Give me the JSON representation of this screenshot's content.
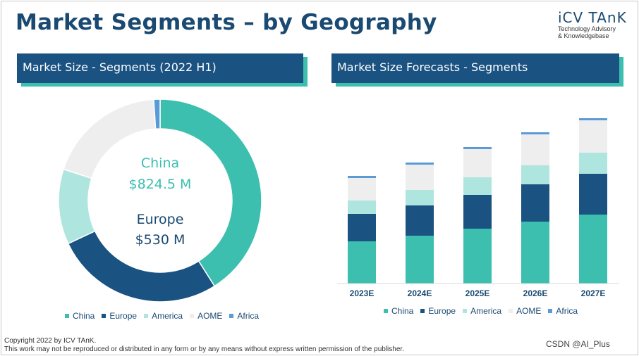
{
  "title": "Market Segments – by Geography",
  "logo": {
    "name": "iCV TAnK",
    "tagline_1": "Technology Advisory",
    "tagline_2": "& Knowledgebase"
  },
  "left_panel": {
    "heading": "Market Size - Segments (2022 H1)"
  },
  "right_panel": {
    "heading": "Market Size Forecasts - Segments"
  },
  "colors": {
    "China": "#3cbfae",
    "Europe": "#1a5282",
    "America": "#aee6df",
    "AOME": "#eeeeee",
    "Africa": "#5b9bd5"
  },
  "legend": [
    "China",
    "Europe",
    "America",
    "AOME",
    "Africa"
  ],
  "chart_data": [
    {
      "type": "pie",
      "variant": "donut",
      "categories": [
        "China",
        "Europe",
        "America",
        "AOME",
        "Africa"
      ],
      "values": [
        41,
        27,
        12,
        19,
        1
      ],
      "value_unit": "% (estimated share)",
      "annotations": [
        {
          "label": "China",
          "value": "$824.5 M"
        },
        {
          "label": "Europe",
          "value": "$530 M"
        }
      ],
      "legend_position": "bottom"
    },
    {
      "type": "bar",
      "stacked": true,
      "categories": [
        "2023E",
        "2024E",
        "2025E",
        "2026E",
        "2027E"
      ],
      "series": [
        {
          "name": "China",
          "values": [
            60,
            68,
            78,
            88,
            98
          ]
        },
        {
          "name": "Europe",
          "values": [
            39,
            43,
            48,
            53,
            58
          ]
        },
        {
          "name": "America",
          "values": [
            19,
            22,
            25,
            27,
            30
          ]
        },
        {
          "name": "AOME",
          "values": [
            32,
            36,
            40,
            44,
            46
          ]
        },
        {
          "name": "Africa",
          "values": [
            3,
            3,
            3,
            3,
            3
          ]
        }
      ],
      "ylim": [
        0,
        250
      ],
      "axes_visible": false,
      "legend_position": "bottom"
    }
  ],
  "footer": {
    "copyright": "Copyright  2022 by ICV TAnK.",
    "notice": "This work may not be reproduced or distributed in any form or by any means without express written permission of the publisher."
  },
  "watermark": "CSDN @AI_Plus"
}
